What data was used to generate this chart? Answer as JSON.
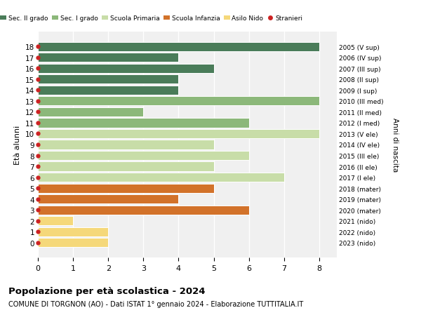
{
  "ages": [
    18,
    17,
    16,
    15,
    14,
    13,
    12,
    11,
    10,
    9,
    8,
    7,
    6,
    5,
    4,
    3,
    2,
    1,
    0
  ],
  "right_labels": [
    "2005 (V sup)",
    "2006 (IV sup)",
    "2007 (III sup)",
    "2008 (II sup)",
    "2009 (I sup)",
    "2010 (III med)",
    "2011 (II med)",
    "2012 (I med)",
    "2013 (V ele)",
    "2014 (IV ele)",
    "2015 (III ele)",
    "2016 (II ele)",
    "2017 (I ele)",
    "2018 (mater)",
    "2019 (mater)",
    "2020 (mater)",
    "2021 (nido)",
    "2022 (nido)",
    "2023 (nido)"
  ],
  "values": [
    8,
    4,
    5,
    4,
    4,
    8,
    3,
    6,
    8,
    5,
    6,
    5,
    7,
    5,
    4,
    6,
    1,
    2,
    2
  ],
  "bar_colors": [
    "#4a7c59",
    "#4a7c59",
    "#4a7c59",
    "#4a7c59",
    "#4a7c59",
    "#8cb87a",
    "#8cb87a",
    "#8cb87a",
    "#c8dda8",
    "#c8dda8",
    "#c8dda8",
    "#c8dda8",
    "#c8dda8",
    "#d2722a",
    "#d2722a",
    "#d2722a",
    "#f5d87a",
    "#f5d87a",
    "#f5d87a"
  ],
  "dot_color": "#cc2222",
  "legend_labels": [
    "Sec. II grado",
    "Sec. I grado",
    "Scuola Primaria",
    "Scuola Infanzia",
    "Asilo Nido",
    "Stranieri"
  ],
  "legend_colors": [
    "#4a7c59",
    "#8cb87a",
    "#c8dda8",
    "#d2722a",
    "#f5d87a",
    "#cc2222"
  ],
  "ylabel": "Età alunni",
  "right_ylabel": "Anni di nascita",
  "title": "Popolazione per età scolastica - 2024",
  "subtitle": "COMUNE DI TORGNON (AO) - Dati ISTAT 1° gennaio 2024 - Elaborazione TUTTITALIA.IT",
  "xlim": [
    0,
    8.5
  ],
  "xticks": [
    0,
    1,
    2,
    3,
    4,
    5,
    6,
    7,
    8
  ],
  "bg_color": "#ffffff",
  "plot_bg_color": "#f0f0f0",
  "grid_color": "#ffffff"
}
